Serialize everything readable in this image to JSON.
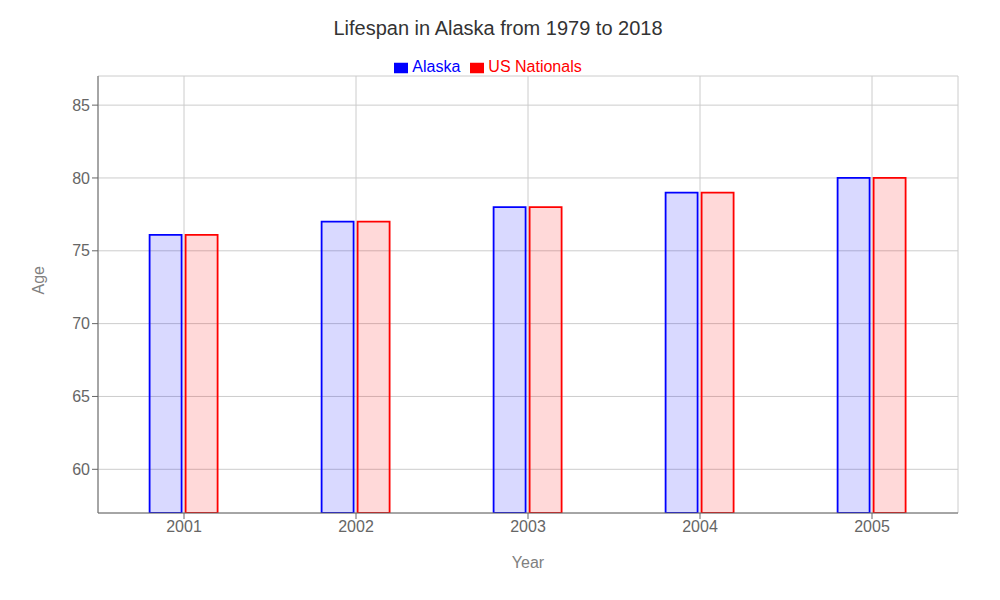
{
  "chart_data": {
    "type": "bar",
    "title": "Lifespan in Alaska from 1979 to 2018",
    "xlabel": "Year",
    "ylabel": "Age",
    "categories": [
      "2001",
      "2002",
      "2003",
      "2004",
      "2005"
    ],
    "series": [
      {
        "name": "Alaska",
        "color": "#0000ff",
        "values": [
          76.1,
          77.0,
          78.0,
          79.0,
          80.0
        ]
      },
      {
        "name": "US Nationals",
        "color": "#ff0000",
        "values": [
          76.1,
          77.0,
          78.0,
          79.0,
          80.0
        ]
      }
    ],
    "ylim": [
      57,
      87
    ],
    "yticks": [
      60,
      65,
      70,
      75,
      80,
      85
    ],
    "grid": true,
    "legend": "top"
  }
}
